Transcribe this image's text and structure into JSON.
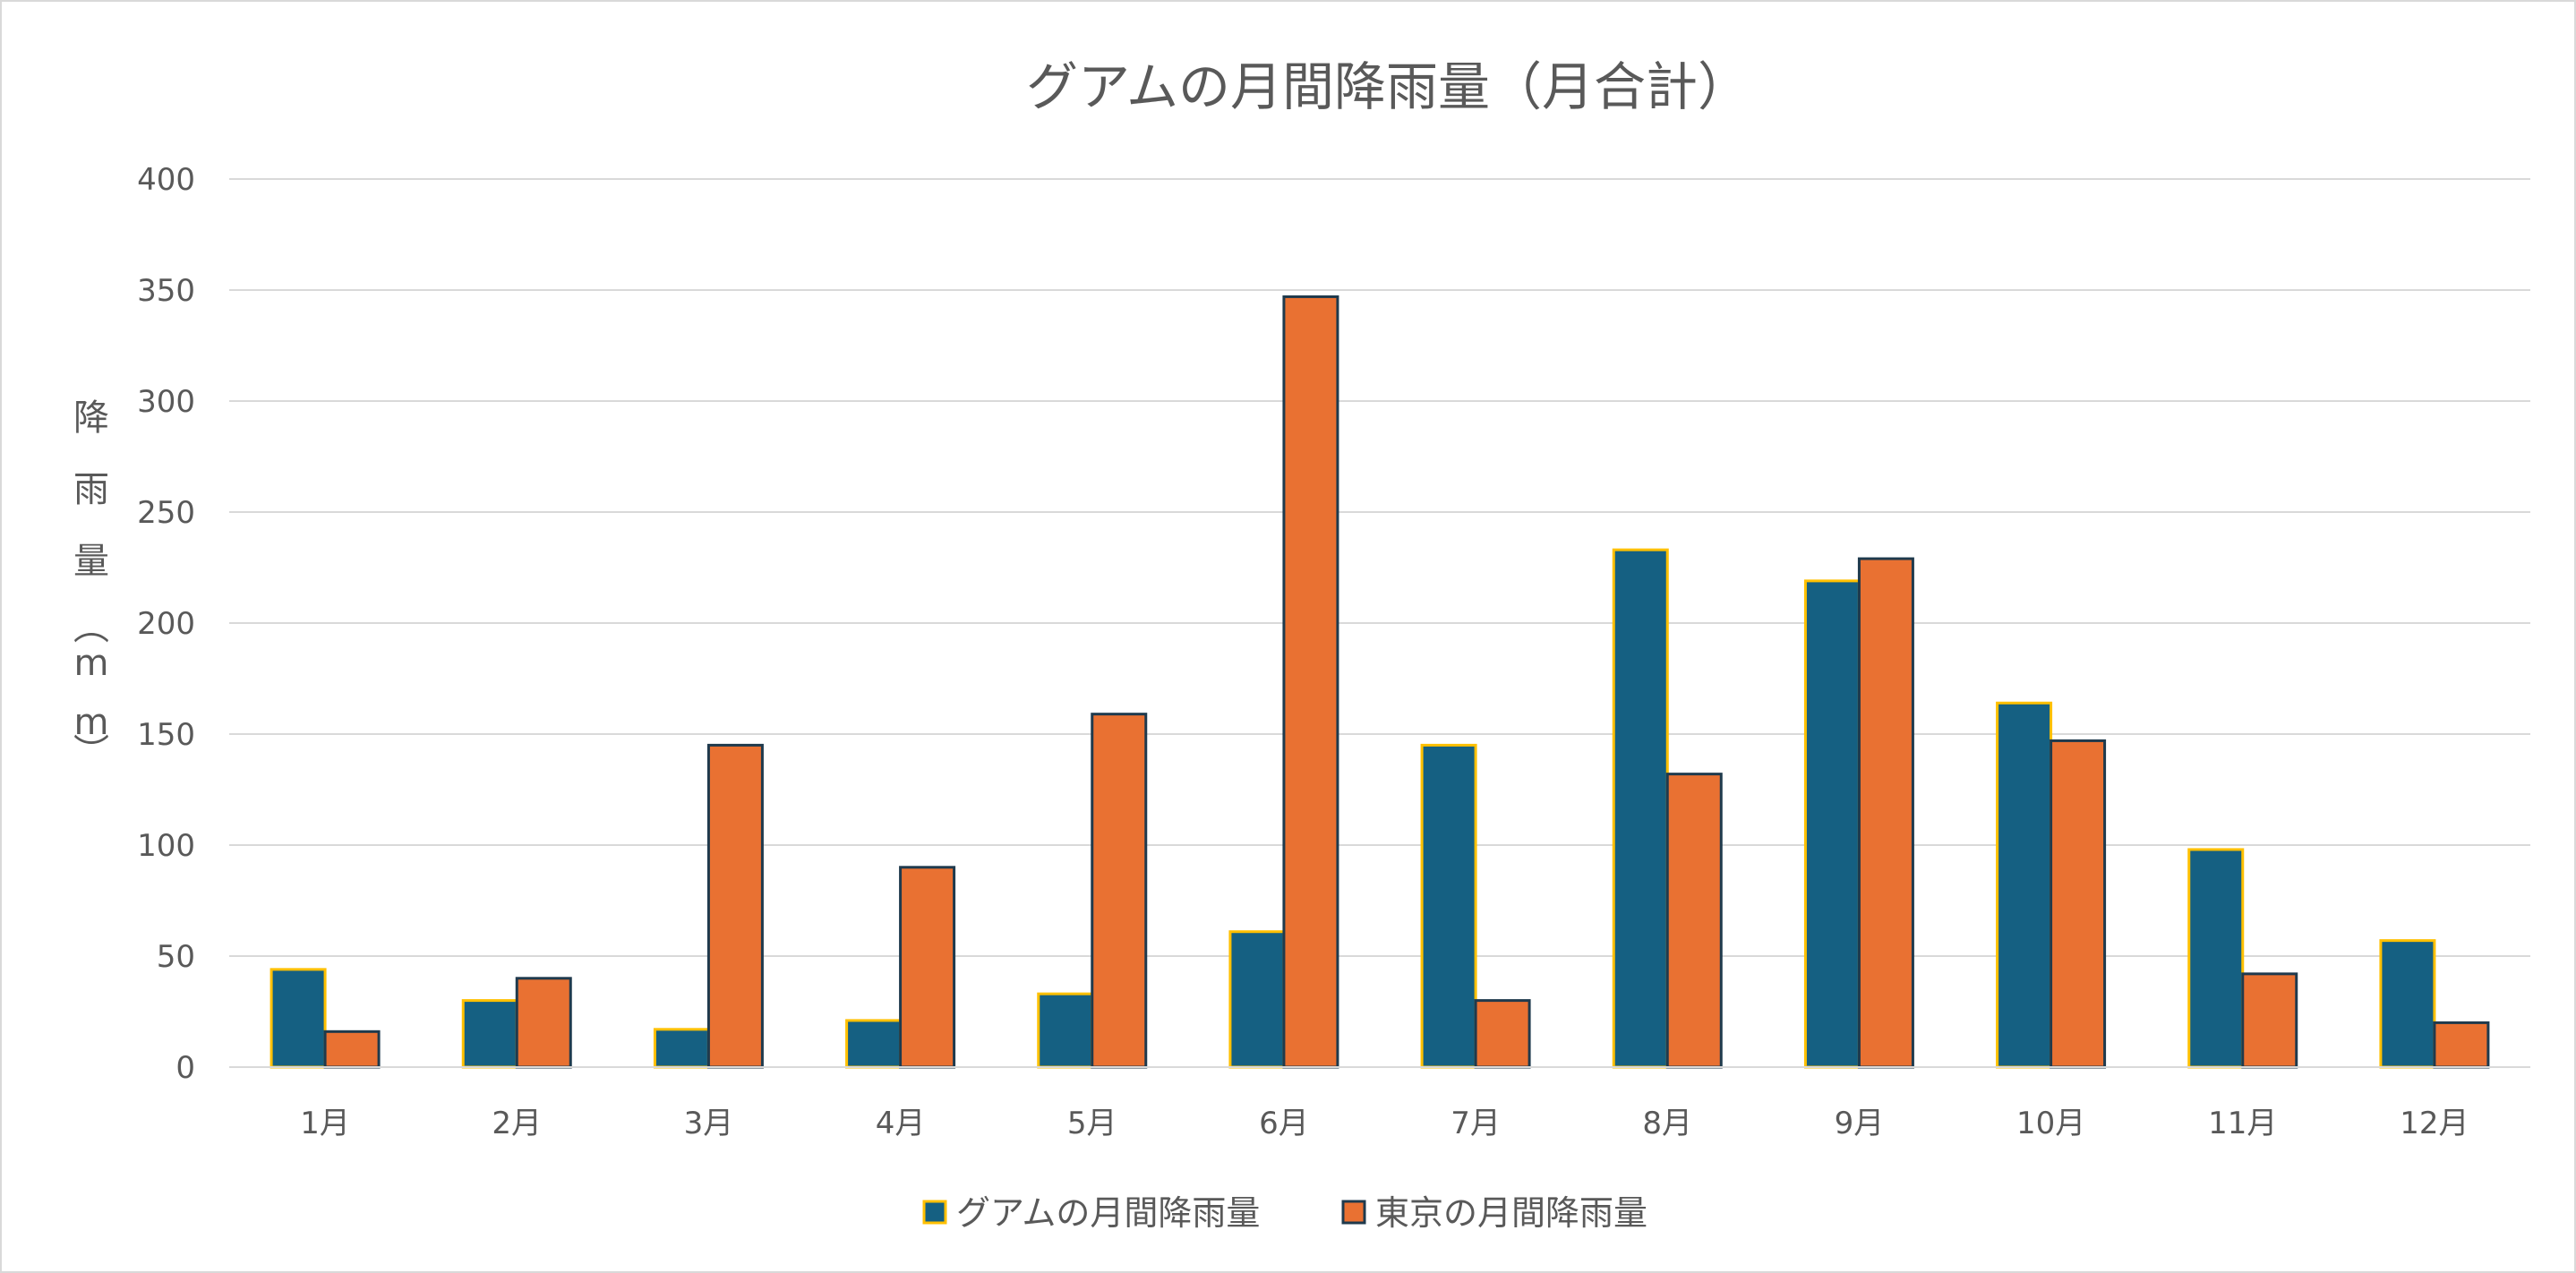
{
  "chart_data": {
    "type": "bar",
    "title": "グアムの月間降雨量（月合計）",
    "xlabel": "",
    "ylabel": "降雨量（mm）",
    "ylabel_chars": [
      "降",
      "雨",
      "量",
      "︵",
      "m",
      "m",
      "︶"
    ],
    "ylim": [
      0,
      400
    ],
    "yticks": [
      0,
      50,
      100,
      150,
      200,
      250,
      300,
      350,
      400
    ],
    "ytick_labels": [
      "0",
      "50",
      "100",
      "150",
      "200",
      "250",
      "300",
      "350",
      "400"
    ],
    "grid": true,
    "legend_position": "bottom",
    "categories": [
      "1月",
      "2月",
      "3月",
      "4月",
      "5月",
      "6月",
      "7月",
      "8月",
      "9月",
      "10月",
      "11月",
      "12月"
    ],
    "series": [
      {
        "name": "グアムの月間降雨量",
        "values": [
          44,
          30,
          17,
          21,
          33,
          61,
          145,
          233,
          219,
          164,
          98,
          57
        ],
        "color": "#156082",
        "edge_color": "#FFC000"
      },
      {
        "name": "東京の月間降雨量",
        "values": [
          16,
          40,
          145,
          90,
          159,
          347,
          30,
          132,
          229,
          147,
          42,
          20
        ],
        "color": "#E97132",
        "edge_color": "#1F3A4D"
      }
    ]
  }
}
